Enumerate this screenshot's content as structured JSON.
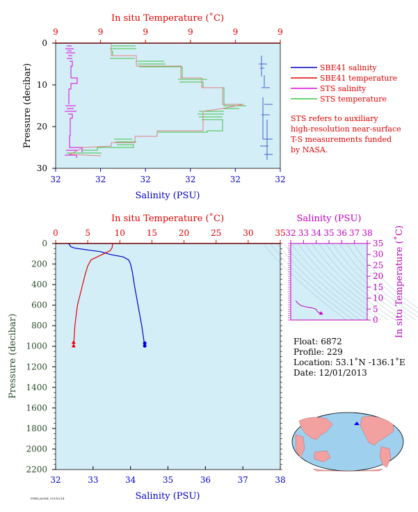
{
  "colors": {
    "plot_bg": "#d4eef8",
    "salinity": "#0000c8",
    "temperature": "#e00000",
    "sts_salinity": "#e000e0",
    "sts_temperature": "#40c040",
    "pressure_axis": "#2a4a2a",
    "ts_axis": "#c000c0"
  },
  "top_panel": {
    "temp_axis_title": "In situ Temperature (˚C)",
    "temp_ticks": [
      "9",
      "9",
      "9",
      "9",
      "9",
      "9"
    ],
    "pressure_axis_title": "Pressure (decibar)",
    "pressure_ticks": [
      "0",
      "10",
      "20",
      "30"
    ],
    "salinity_ticks": [
      "32",
      "32",
      "32",
      "32",
      "32",
      "32"
    ],
    "salinity_axis_title": "Salinity (PSU)",
    "legend": [
      {
        "label": "SBE41 salinity",
        "color": "#0000c8"
      },
      {
        "label": "SBE41 temperature",
        "color": "#e00000"
      },
      {
        "label": "STS salinity",
        "color": "#e000e0"
      },
      {
        "label": "STS temperature",
        "color": "#40c040"
      }
    ],
    "note": [
      "STS refers to auxiliary",
      "high-resolution near-surface",
      "T-S measurements funded",
      "by NASA."
    ]
  },
  "main_panel": {
    "temp_axis_title": "In situ Temperature (˚C)",
    "temp_ticks": [
      "0",
      "5",
      "10",
      "15",
      "20",
      "25",
      "30",
      "35"
    ],
    "pressure_axis_title": "Pressure (decibar)",
    "pressure_ticks": [
      "0",
      "200",
      "400",
      "600",
      "800",
      "1000",
      "1200",
      "1400",
      "1600",
      "1800",
      "2000",
      "2200"
    ],
    "salinity_ticks": [
      "32",
      "33",
      "34",
      "35",
      "36",
      "37",
      "38"
    ],
    "salinity_axis_title": "Salinity (PSU)"
  },
  "ts_panel": {
    "salinity_axis_title": "Salinity (PSU)",
    "salinity_ticks": [
      "32",
      "33",
      "34",
      "35",
      "36",
      "37",
      "38"
    ],
    "temp_axis_title": "In situ Temperature (˚C)",
    "temp_ticks": [
      "0",
      "5",
      "10",
      "15",
      "20",
      "25",
      "30",
      "35"
    ]
  },
  "float_info": {
    "float": "Float:  6872",
    "profile": "Profile:  229",
    "location": "Location:  53.1˚N  -136.1˚E",
    "date": "Date:  12/01/2013"
  },
  "footer_text": "PMEL/AOML 20130214",
  "chart_data": [
    {
      "type": "line",
      "title": "",
      "xlabel": "Salinity (PSU)",
      "x2label": "In situ Temperature (˚C)",
      "ylabel": "Pressure (decibar)",
      "xlim": [
        32,
        38
      ],
      "x2lim": [
        0,
        35
      ],
      "ylim": [
        2200,
        0
      ],
      "series": [
        {
          "name": "salinity",
          "points": [
            [
              32.35,
              0
            ],
            [
              32.4,
              30
            ],
            [
              32.5,
              45
            ],
            [
              32.8,
              60
            ],
            [
              33.2,
              80
            ],
            [
              33.5,
              110
            ],
            [
              33.8,
              130
            ],
            [
              33.95,
              160
            ],
            [
              34.0,
              200
            ],
            [
              34.05,
              280
            ],
            [
              34.1,
              400
            ],
            [
              34.2,
              600
            ],
            [
              34.3,
              800
            ],
            [
              34.38,
              1000
            ],
            [
              34.38,
              1010
            ]
          ]
        },
        {
          "name": "temperature",
          "points": [
            [
              8.9,
              0
            ],
            [
              8.8,
              40
            ],
            [
              8.5,
              70
            ],
            [
              7.5,
              100
            ],
            [
              6.5,
              130
            ],
            [
              5.5,
              160
            ],
            [
              5.0,
              220
            ],
            [
              4.6,
              300
            ],
            [
              4.2,
              400
            ],
            [
              3.8,
              500
            ],
            [
              3.4,
              600
            ],
            [
              3.2,
              700
            ],
            [
              3.0,
              800
            ],
            [
              2.9,
              900
            ],
            [
              2.8,
              1000
            ],
            [
              2.8,
              1010
            ]
          ]
        }
      ]
    },
    {
      "type": "scatter",
      "title": "",
      "xlabel": "Salinity (PSU)",
      "ylabel": "In situ Temperature (˚C)",
      "xlim": [
        32,
        38
      ],
      "ylim": [
        0,
        35
      ],
      "series": [
        {
          "name": "T-S",
          "points": [
            [
              32.4,
              8.9
            ],
            [
              32.5,
              8.0
            ],
            [
              32.8,
              6.6
            ],
            [
              33.2,
              6.0
            ],
            [
              33.6,
              5.6
            ],
            [
              33.9,
              5.2
            ],
            [
              34.0,
              4.8
            ],
            [
              34.05,
              4.2
            ],
            [
              34.15,
              3.6
            ],
            [
              34.3,
              3.1
            ],
            [
              34.38,
              2.8
            ]
          ]
        }
      ]
    }
  ]
}
